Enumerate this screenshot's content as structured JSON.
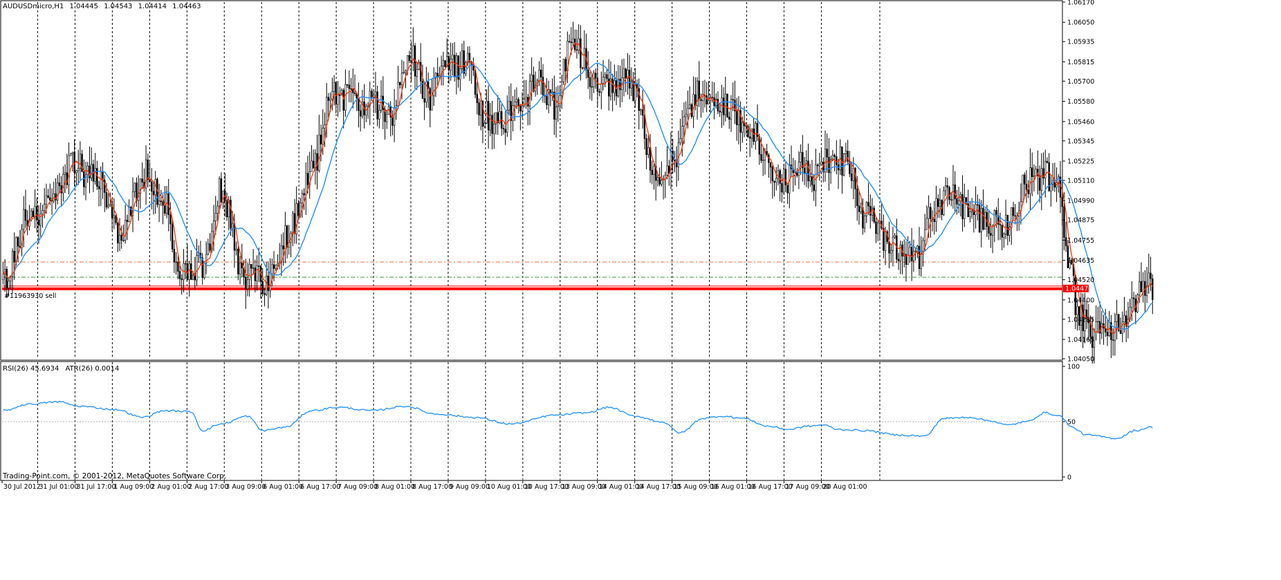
{
  "header": {
    "symbol": "AUDUSDmicro,H1",
    "open": "1.04445",
    "high": "1.04543",
    "low": "1.04414",
    "close": "1.04463"
  },
  "indicator_header": {
    "rsi": "RSI(26) 45.6934",
    "atr": "ATR(26) 0.0014"
  },
  "order_label": "#11963930 sell",
  "current_price_label": "1.04470",
  "footer": "Trading-Point.com, © 2001-2012, MetaQuotes Software Corp.",
  "colors": {
    "candle": "#000000",
    "fast_ma": "#ff3300",
    "slow_ma": "#1e90ff",
    "rsi_line": "#1e90ff",
    "grid": "#000000",
    "price_line": "#ff0000",
    "take_profit_line": "#ff6633",
    "stop_line": "#339933"
  },
  "chart_data": [
    {
      "type": "candlestick",
      "price_range": [
        1.0405,
        1.0617
      ],
      "y_ticks": [
        "1.06170",
        "1.06050",
        "1.05935",
        "1.05815",
        "1.05700",
        "1.05580",
        "1.05460",
        "1.05345",
        "1.05225",
        "1.05110",
        "1.04990",
        "1.04875",
        "1.04755",
        "1.04635",
        "1.04520",
        "1.04400",
        "1.04285",
        "1.04165",
        "1.04050"
      ],
      "x_ticks": [
        "30 Jul 2012",
        "31 Jul 01:00",
        "31 Jul 17:00",
        "1 Aug 09:00",
        "2 Aug 01:00",
        "2 Aug 17:00",
        "3 Aug 09:00",
        "6 Aug 01:00",
        "6 Aug 17:00",
        "7 Aug 09:00",
        "8 Aug 01:00",
        "8 Aug 17:00",
        "9 Aug 09:00",
        "10 Aug 01:00",
        "10 Aug 17:00",
        "13 Aug 09:00",
        "14 Aug 01:00",
        "14 Aug 17:00",
        "15 Aug 09:00",
        "16 Aug 01:00",
        "16 Aug 17:00",
        "17 Aug 09:00",
        "20 Aug 01:00"
      ],
      "anchors": [
        [
          0,
          1.0452
        ],
        [
          14,
          1.049
        ],
        [
          28,
          1.05
        ],
        [
          36,
          1.052
        ],
        [
          50,
          1.0512
        ],
        [
          62,
          1.048
        ],
        [
          76,
          1.0515
        ],
        [
          86,
          1.05
        ],
        [
          94,
          1.0456
        ],
        [
          106,
          1.0462
        ],
        [
          116,
          1.0505
        ],
        [
          128,
          1.0455
        ],
        [
          140,
          1.0452
        ],
        [
          152,
          1.048
        ],
        [
          164,
          1.0518
        ],
        [
          176,
          1.0565
        ],
        [
          186,
          1.0558
        ],
        [
          196,
          1.0558
        ],
        [
          206,
          1.0548
        ],
        [
          216,
          1.0585
        ],
        [
          226,
          1.056
        ],
        [
          236,
          1.058
        ],
        [
          246,
          1.058
        ],
        [
          256,
          1.055
        ],
        [
          264,
          1.0545
        ],
        [
          274,
          1.0556
        ],
        [
          284,
          1.0568
        ],
        [
          294,
          1.0555
        ],
        [
          302,
          1.0595
        ],
        [
          314,
          1.0572
        ],
        [
          322,
          1.057
        ],
        [
          334,
          1.0568
        ],
        [
          346,
          1.0515
        ],
        [
          356,
          1.052
        ],
        [
          362,
          1.055
        ],
        [
          372,
          1.0565
        ],
        [
          386,
          1.0555
        ],
        [
          396,
          1.0545
        ],
        [
          404,
          1.0528
        ],
        [
          414,
          1.051
        ],
        [
          424,
          1.052
        ],
        [
          432,
          1.0512
        ],
        [
          440,
          1.0525
        ],
        [
          448,
          1.0522
        ],
        [
          458,
          1.049
        ],
        [
          468,
          1.0478
        ],
        [
          478,
          1.047
        ],
        [
          486,
          1.0465
        ],
        [
          494,
          1.0495
        ],
        [
          504,
          1.05
        ],
        [
          514,
          1.049
        ],
        [
          524,
          1.0485
        ],
        [
          534,
          1.0485
        ],
        [
          544,
          1.051
        ],
        [
          554,
          1.0515
        ],
        [
          562,
          1.0505
        ],
        [
          566,
          1.046
        ],
        [
          572,
          1.0432
        ],
        [
          580,
          1.042
        ],
        [
          588,
          1.0418
        ],
        [
          596,
          1.0428
        ],
        [
          604,
          1.0442
        ],
        [
          608,
          1.0448
        ]
      ],
      "fast_ma_period": 5,
      "slow_ma_period": 20,
      "horizontal_levels": {
        "take_profit": 1.04625,
        "stop": 1.04535,
        "current": 1.0447
      }
    },
    {
      "type": "line",
      "name": "RSI(26)",
      "ylim": [
        0,
        100
      ],
      "y_ticks": [
        "100",
        "50",
        "0"
      ],
      "anchors": [
        [
          0,
          60
        ],
        [
          14,
          66
        ],
        [
          30,
          68
        ],
        [
          40,
          64
        ],
        [
          60,
          61
        ],
        [
          74,
          54
        ],
        [
          86,
          60
        ],
        [
          100,
          59
        ],
        [
          106,
          42
        ],
        [
          116,
          48
        ],
        [
          130,
          55
        ],
        [
          138,
          42
        ],
        [
          150,
          45
        ],
        [
          164,
          60
        ],
        [
          178,
          63
        ],
        [
          196,
          60
        ],
        [
          214,
          64
        ],
        [
          230,
          57
        ],
        [
          250,
          54
        ],
        [
          270,
          48
        ],
        [
          294,
          56
        ],
        [
          310,
          58
        ],
        [
          322,
          63
        ],
        [
          336,
          55
        ],
        [
          350,
          50
        ],
        [
          360,
          40
        ],
        [
          372,
          53
        ],
        [
          382,
          55
        ],
        [
          394,
          53
        ],
        [
          406,
          46
        ],
        [
          418,
          43
        ],
        [
          428,
          46
        ],
        [
          436,
          47
        ],
        [
          444,
          43
        ],
        [
          458,
          42
        ],
        [
          476,
          38
        ],
        [
          490,
          37
        ],
        [
          500,
          53
        ],
        [
          514,
          54
        ],
        [
          524,
          51
        ],
        [
          534,
          47
        ],
        [
          544,
          50
        ],
        [
          554,
          58
        ],
        [
          562,
          55
        ],
        [
          568,
          45
        ],
        [
          576,
          38
        ],
        [
          592,
          35
        ],
        [
          602,
          42
        ],
        [
          610,
          45
        ]
      ]
    }
  ]
}
